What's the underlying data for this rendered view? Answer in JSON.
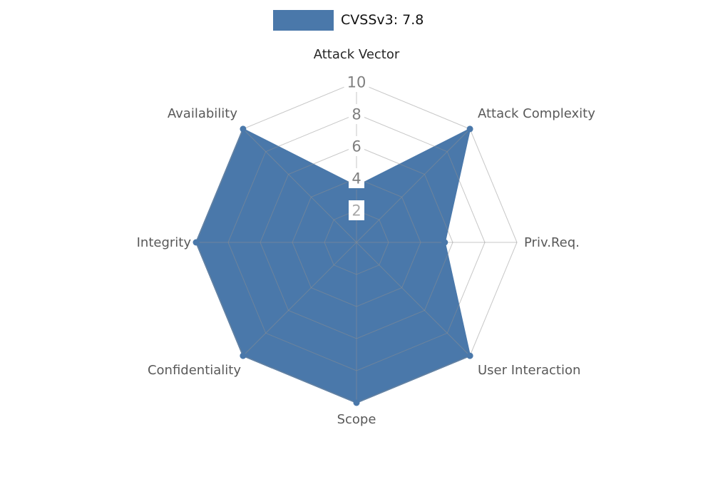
{
  "legend": {
    "label": "CVSSv3: 7.8"
  },
  "chart_data": {
    "type": "radar",
    "title": "CVSSv3: 7.8",
    "categories": [
      "Attack Vector",
      "Attack Complexity",
      "Priv.Req.",
      "User Interaction",
      "Scope",
      "Confidentiality",
      "Integrity",
      "Availability"
    ],
    "series": [
      {
        "name": "CVSSv3: 7.8",
        "values": [
          3.5,
          10,
          5.5,
          10,
          10,
          10,
          10,
          10
        ]
      }
    ],
    "rlim": [
      0,
      10
    ],
    "rticks": [
      2,
      4,
      6,
      8,
      10
    ],
    "grid": true,
    "legend_position": "top-center",
    "colors": {
      "accent": "#4a78aa",
      "grid": "#8f8f8f",
      "tick_label": "#7f7f7f",
      "axis_label": "#595959",
      "top_axis_label": "#262626"
    }
  }
}
